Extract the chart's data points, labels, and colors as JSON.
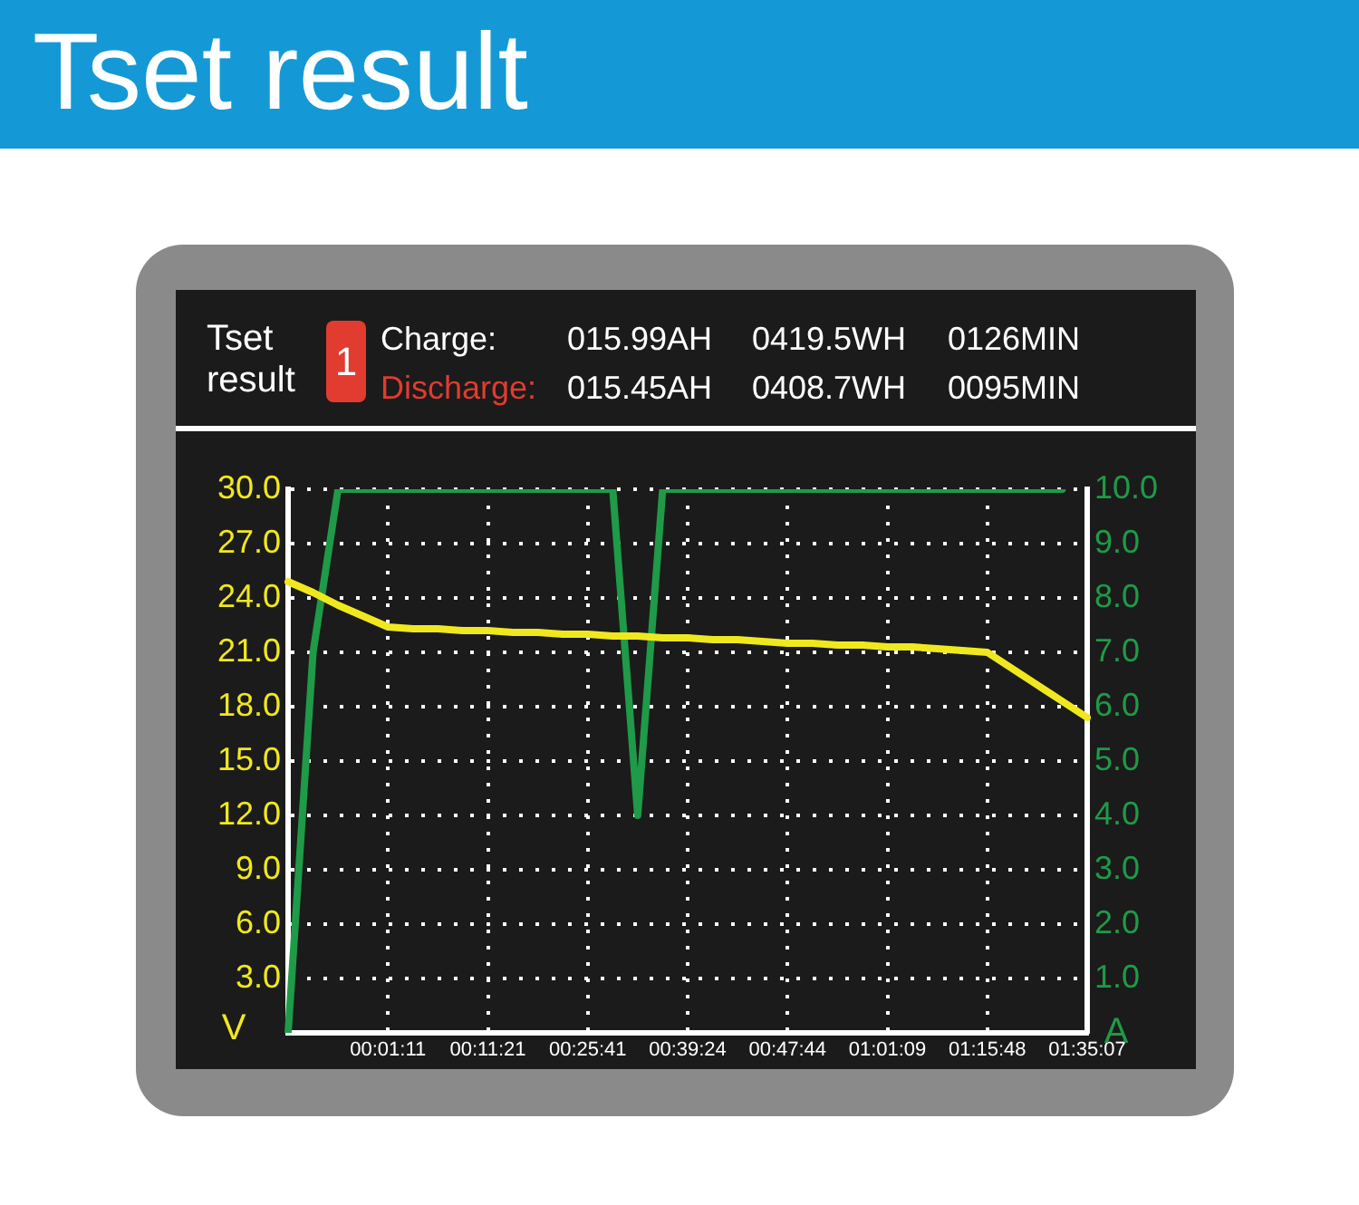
{
  "chart_data": {
    "type": "line",
    "title": "Tset result",
    "annotations": [
      "Tset result",
      "1",
      "Charge:",
      "015.99AH",
      "0419.5WH",
      "0126MIN",
      "Discharge:",
      "015.45AH",
      "0408.7WH",
      "0095MIN"
    ],
    "ylabel": "V",
    "y2label": "A",
    "categories": [
      null,
      null,
      null,
      null,
      "00:01:11",
      null,
      null,
      null,
      "00:11:21",
      null,
      null,
      null,
      "00:25:41",
      null,
      null,
      null,
      "00:39:24",
      null,
      null,
      null,
      "00:47:44",
      null,
      null,
      null,
      "01:01:09",
      null,
      null,
      null,
      "01:15:48",
      null,
      null,
      null,
      "01:35:07"
    ],
    "ylim": [
      0,
      30
    ],
    "yticks": [
      {
        "value": 3,
        "label": "3.0"
      },
      {
        "value": 6,
        "label": "6.0"
      },
      {
        "value": 9,
        "label": "9.0"
      },
      {
        "value": 12,
        "label": "12.0"
      },
      {
        "value": 15,
        "label": "15.0"
      },
      {
        "value": 18,
        "label": "18.0"
      },
      {
        "value": 21,
        "label": "21.0"
      },
      {
        "value": 24,
        "label": "24.0"
      },
      {
        "value": 27,
        "label": "27.0"
      },
      {
        "value": 30,
        "label": "30.0"
      }
    ],
    "y2lim": [
      0,
      10
    ],
    "y2ticks": [
      {
        "value": 1,
        "label": "1.0"
      },
      {
        "value": 2,
        "label": "2.0"
      },
      {
        "value": 3,
        "label": "3.0"
      },
      {
        "value": 4,
        "label": "4.0"
      },
      {
        "value": 5,
        "label": "5.0"
      },
      {
        "value": 6,
        "label": "6.0"
      },
      {
        "value": 7,
        "label": "7.0"
      },
      {
        "value": 8,
        "label": "8.0"
      },
      {
        "value": 9,
        "label": "9.0"
      },
      {
        "value": 10,
        "label": "10.0"
      }
    ],
    "grid": true,
    "marker": "none",
    "line_style": "solid",
    "legend": false,
    "series": [
      {
        "color": "#f0e81e",
        "values": [
          24.9,
          24.3,
          23.6,
          23.0,
          22.4,
          22.3,
          22.3,
          22.2,
          22.2,
          22.1,
          22.1,
          22.0,
          22.0,
          21.9,
          21.9,
          21.8,
          21.8,
          21.7,
          21.7,
          21.6,
          21.5,
          21.5,
          21.4,
          21.4,
          21.3,
          21.3,
          21.2,
          21.1,
          21.0,
          20.1,
          19.2,
          18.3,
          17.4
        ]
      },
      {
        "axis": "y2",
        "color": "#1f9a48",
        "values": [
          0,
          7,
          10,
          10,
          10,
          10,
          10,
          10,
          10,
          10,
          10,
          10,
          10,
          10,
          4.0,
          10,
          10,
          10,
          10,
          10,
          10,
          10,
          10,
          10,
          10,
          10,
          10,
          10,
          10,
          10,
          10,
          10,
          null
        ]
      }
    ]
  }
}
